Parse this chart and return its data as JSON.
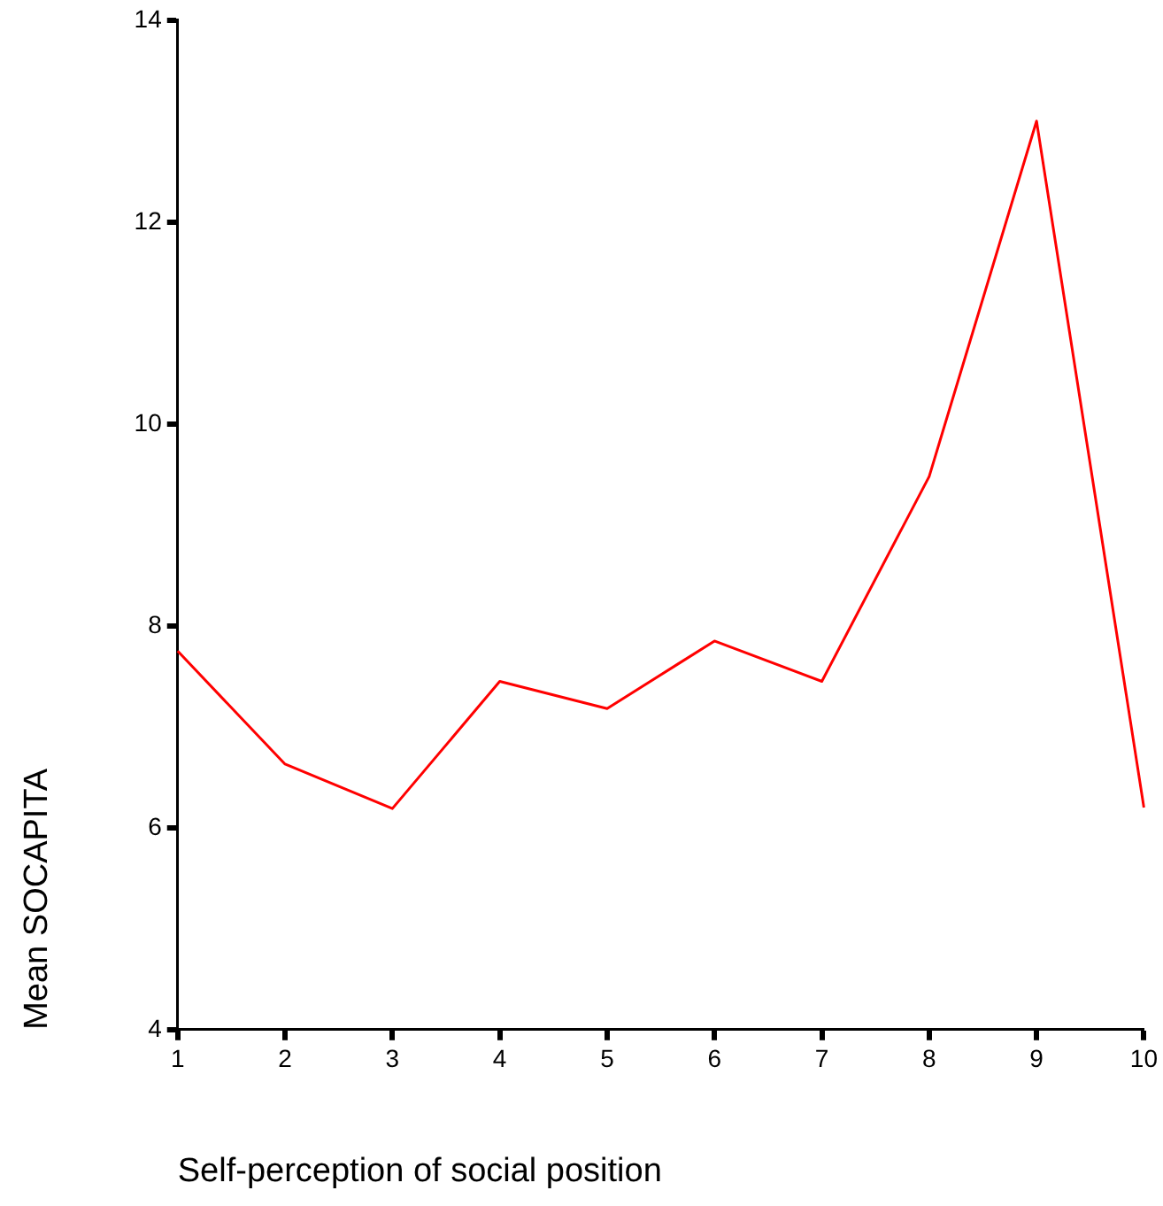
{
  "chart_data": {
    "type": "line",
    "xlabel": "Self-perception of social position",
    "ylabel": "Mean SOCAPITA",
    "categories": [
      "1",
      "2",
      "3",
      "4",
      "5",
      "6",
      "7",
      "8",
      "9",
      "10"
    ],
    "series": [
      {
        "color": "#ff0000",
        "values": [
          7.75,
          6.63,
          6.19,
          7.45,
          7.18,
          7.85,
          7.45,
          9.48,
          13.0,
          6.2
        ]
      }
    ],
    "ylim": [
      4,
      14
    ],
    "yticks": [
      4,
      6,
      8,
      10,
      12,
      14
    ],
    "grid": false,
    "legend": false,
    "marker": "none",
    "line_style": "solid"
  }
}
